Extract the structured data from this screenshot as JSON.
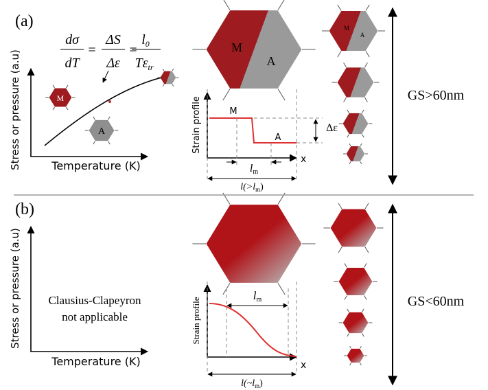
{
  "panel_a": {
    "label": "(a)",
    "equation": {
      "f1": {
        "num": "dσ",
        "den": "dT"
      },
      "eq": "=",
      "f2": {
        "num": "ΔS",
        "den": "Δε"
      },
      "f3": {
        "num": "l",
        "num_sub": "0",
        "den": "Tε",
        "den_sub": "tr"
      }
    },
    "hex_labels": {
      "martensite": "M",
      "austenite": "A"
    },
    "y_axis": "Stress or pressure (a.u)",
    "x_axis": "Temperature (K)",
    "strain": {
      "y_axis": "Strain profile",
      "phase_left": "M",
      "phase_right": "A",
      "delta": "Δε",
      "x_axis": "x",
      "lm": {
        "base": "l",
        "sub": "m"
      },
      "l": {
        "base": "l(>l",
        "sub": "m",
        "tail": ")"
      }
    },
    "grain_size": "GS>60nm"
  },
  "panel_b": {
    "label": "(b)",
    "y_axis": "Stress or pressure (a.u)",
    "x_axis": "Temperature (K)",
    "note": [
      "Clausius-Clapeyron",
      "not applicable"
    ],
    "strain": {
      "y_axis": "Strain profile",
      "x_axis": "x",
      "lm": {
        "base": "l",
        "sub": "m"
      },
      "l": {
        "base": "l(~l",
        "sub": "m",
        "tail": ")"
      }
    },
    "grain_size": "GS<60nm"
  }
}
